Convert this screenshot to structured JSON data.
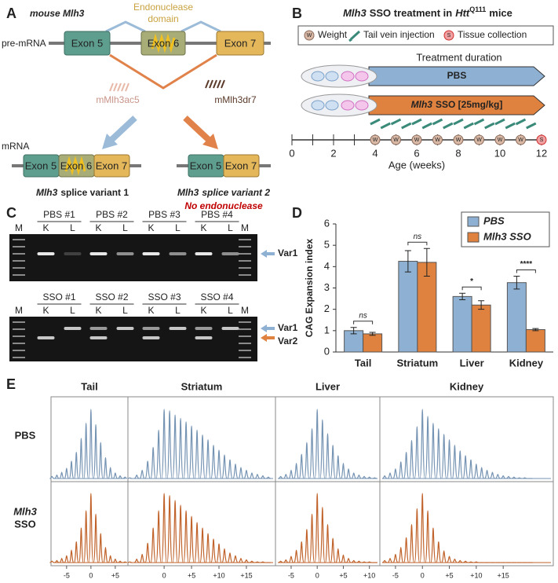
{
  "panel_a": {
    "label": "A",
    "title": "mouse Mlh3",
    "domain": [
      "Endonuclease",
      "domain"
    ],
    "pre_mrna": "pre-mRNA",
    "mrna": "mRNA",
    "exons": [
      "Exon 5",
      "Exon 6",
      "Exon 7"
    ],
    "sso": [
      "mMlh3ac5",
      "mMlh3dr7"
    ],
    "variants": [
      {
        "gene": "Mlh3",
        "name": "splice variant 1"
      },
      {
        "gene": "Mlh3",
        "name": "splice variant 2",
        "note": "No endonuclease"
      }
    ]
  },
  "panel_b": {
    "label": "B",
    "title": {
      "gene": "Mlh3",
      "text": "SSO treatment in",
      "model": "Htt",
      "allele": "Q111",
      "end": "mice"
    },
    "legend": [
      {
        "icon": "W",
        "text": "Weight"
      },
      {
        "text": "Tail vein injection"
      },
      {
        "icon": "S",
        "text": "Tissue collection"
      }
    ],
    "duration": "Treatment duration",
    "groups": [
      {
        "text": "PBS"
      },
      {
        "gene": "Mlh3",
        "text": "SSO [25mg/kg]"
      }
    ],
    "timeline": {
      "xlim": [
        0,
        12
      ],
      "xticks": [
        0,
        2,
        4,
        6,
        8,
        10,
        12
      ],
      "minor_xticks": [
        1,
        3,
        5,
        7,
        9,
        11
      ],
      "xlabel": "Age (weeks)",
      "weight_weeks": [
        4,
        5,
        6,
        7,
        8,
        9,
        10,
        11
      ],
      "collection_weeks": [
        12
      ],
      "injection_weeks": [
        4,
        4.5,
        5,
        5.5,
        6,
        6.5,
        7,
        7.5,
        8,
        8.5,
        9,
        9.5,
        10,
        10.5,
        11,
        11.5
      ]
    }
  },
  "panel_c": {
    "label": "C",
    "marker": "M",
    "lanes": [
      "K",
      "L"
    ],
    "top": {
      "groups": [
        "PBS #1",
        "PBS #2",
        "PBS #3",
        "PBS #4"
      ],
      "bands": [
        "Var1"
      ]
    },
    "bottom": {
      "groups": [
        "SSO #1",
        "SSO #2",
        "SSO #3",
        "SSO #4"
      ],
      "bands": [
        "Var1",
        "Var2"
      ]
    }
  },
  "chart_data": [
    {
      "type": "bar",
      "label": "D",
      "ylabel": "CAG Expansion index",
      "categories": [
        "Tail",
        "Striatum",
        "Liver",
        "Kidney"
      ],
      "ylim": [
        0,
        6
      ],
      "yticks": [
        0,
        1,
        2,
        3,
        4,
        5,
        6
      ],
      "legend": "upper right",
      "series": [
        {
          "name": "PBS",
          "color": "#8eb1d3",
          "values": [
            1.0,
            4.25,
            2.6,
            3.25
          ],
          "errors": [
            0.15,
            0.5,
            0.15,
            0.3
          ]
        },
        {
          "name": "Mlh3 SSO",
          "color": "#e0823f",
          "values": [
            0.85,
            4.2,
            2.2,
            1.05
          ],
          "errors": [
            0.07,
            0.65,
            0.2,
            0.05
          ]
        }
      ],
      "annotations": [
        "ns",
        "ns",
        "*",
        "****"
      ]
    },
    {
      "type": "peak",
      "label": "E",
      "ylim": [
        0,
        100
      ],
      "rows": [
        {
          "label": [
            "PBS"
          ],
          "color": "#7593b3"
        },
        {
          "label": [
            "Mlh3",
            "SSO"
          ],
          "color": "#c0622a"
        }
      ],
      "panels": [
        {
          "title": "Tail",
          "xlim": [
            -8.2,
            7.6
          ],
          "xticks": [
            -5,
            0,
            {
              "value": 5,
              "label": "+5"
            }
          ],
          "x": [
            -8,
            -7,
            -6,
            -5,
            -4,
            -3,
            -2,
            -1,
            0,
            1,
            2,
            3,
            4,
            5,
            6,
            7,
            8
          ],
          "values": [
            [
              3,
              5,
              9,
              15,
              25,
              38,
              58,
              80,
              100,
              78,
              52,
              30,
              16,
              8,
              4,
              2,
              1
            ],
            [
              2,
              3,
              6,
              10,
              18,
              30,
              50,
              75,
              100,
              70,
              42,
              22,
              10,
              5,
              2,
              1,
              1
            ]
          ]
        },
        {
          "title": "Striatum",
          "xlim": [
            -6.6,
            20.3
          ],
          "xticks": [
            0,
            {
              "value": 5,
              "label": "+5"
            },
            {
              "value": 10,
              "label": "+10"
            },
            {
              "value": 15,
              "label": "+15"
            }
          ],
          "x": [
            -5,
            -4,
            -3,
            -2,
            -1,
            0,
            1,
            2,
            3,
            4,
            5,
            6,
            7,
            8,
            9,
            10,
            11,
            12,
            13,
            14,
            15,
            16,
            17,
            18,
            19
          ],
          "values": [
            [
              5,
              12,
              25,
              45,
              70,
              100,
              98,
              92,
              87,
              82,
              76,
              70,
              63,
              56,
              48,
              41,
              34,
              27,
              21,
              16,
              12,
              8,
              6,
              4,
              2
            ],
            [
              5,
              12,
              28,
              50,
              75,
              100,
              97,
              90,
              83,
              75,
              67,
              58,
              50,
              42,
              34,
              27,
              20,
              14,
              10,
              6,
              4,
              2,
              1,
              1,
              0
            ]
          ]
        },
        {
          "title": "Liver",
          "xlim": [
            -8,
            12
          ],
          "xticks": [
            -5,
            0,
            {
              "value": 5,
              "label": "+5"
            },
            {
              "value": 10,
              "label": "+10"
            }
          ],
          "x": [
            -7,
            -6,
            -5,
            -4,
            -3,
            -2,
            -1,
            0,
            1,
            2,
            3,
            4,
            5,
            6,
            7,
            8,
            9,
            10,
            11
          ],
          "values": [
            [
              3,
              6,
              12,
              22,
              35,
              52,
              72,
              100,
              85,
              65,
              48,
              33,
              22,
              14,
              8,
              5,
              3,
              2,
              1
            ],
            [
              2,
              4,
              9,
              18,
              30,
              48,
              70,
              100,
              80,
              55,
              35,
              20,
              11,
              6,
              3,
              2,
              1,
              1,
              0
            ]
          ]
        },
        {
          "title": "Kidney",
          "xlim": [
            -7.9,
            24.3
          ],
          "xticks": [
            -5,
            0,
            {
              "value": 5,
              "label": "+5"
            },
            {
              "value": 10,
              "label": "+10"
            },
            {
              "value": 15,
              "label": "+15"
            }
          ],
          "x": [
            -7,
            -6,
            -5,
            -4,
            -3,
            -2,
            -1,
            0,
            1,
            2,
            3,
            4,
            5,
            6,
            7,
            8,
            9,
            10,
            11,
            12,
            13,
            14,
            15,
            16,
            17,
            18,
            19,
            20
          ],
          "values": [
            [
              4,
              8,
              14,
              24,
              38,
              55,
              75,
              100,
              90,
              80,
              72,
              64,
              56,
              48,
              40,
              33,
              27,
              21,
              16,
              12,
              9,
              6,
              4,
              3,
              2,
              1,
              1,
              0
            ],
            [
              3,
              6,
              12,
              22,
              36,
              55,
              78,
              100,
              75,
              50,
              30,
              17,
              9,
              5,
              3,
              2,
              1,
              1,
              0,
              0,
              0,
              0,
              0,
              0,
              0,
              0,
              0,
              0
            ]
          ]
        }
      ]
    }
  ]
}
